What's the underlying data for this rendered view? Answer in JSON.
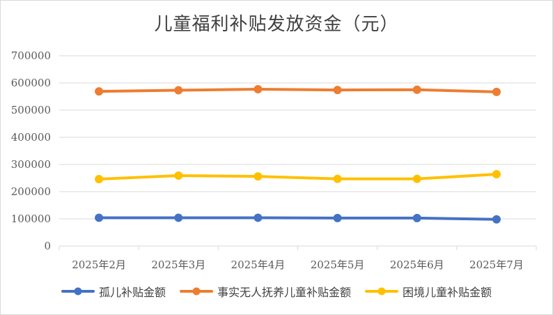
{
  "chart_data": {
    "type": "line",
    "title": "儿童福利补贴发放资金（元）",
    "categories": [
      "2025年2月",
      "2025年3月",
      "2025年4月",
      "2025年5月",
      "2025年6月",
      "2025年7月"
    ],
    "yticks": [
      "0",
      "100000",
      "200000",
      "300000",
      "400000",
      "500000",
      "600000",
      "700000"
    ],
    "ylim": [
      0,
      700000
    ],
    "grid": true,
    "legend_position": "bottom",
    "series": [
      {
        "name": "孤儿补贴金额",
        "color": "#4472C4",
        "values": [
          104000,
          104000,
          104000,
          103000,
          103000,
          98000
        ]
      },
      {
        "name": "事实无人抚养儿童补贴金额",
        "color": "#ED7D31",
        "values": [
          569000,
          573000,
          577000,
          574000,
          575000,
          567000
        ]
      },
      {
        "name": "困境儿童补贴金额",
        "color": "#FFC000",
        "values": [
          246000,
          259000,
          256000,
          247000,
          247000,
          264000
        ]
      }
    ]
  }
}
